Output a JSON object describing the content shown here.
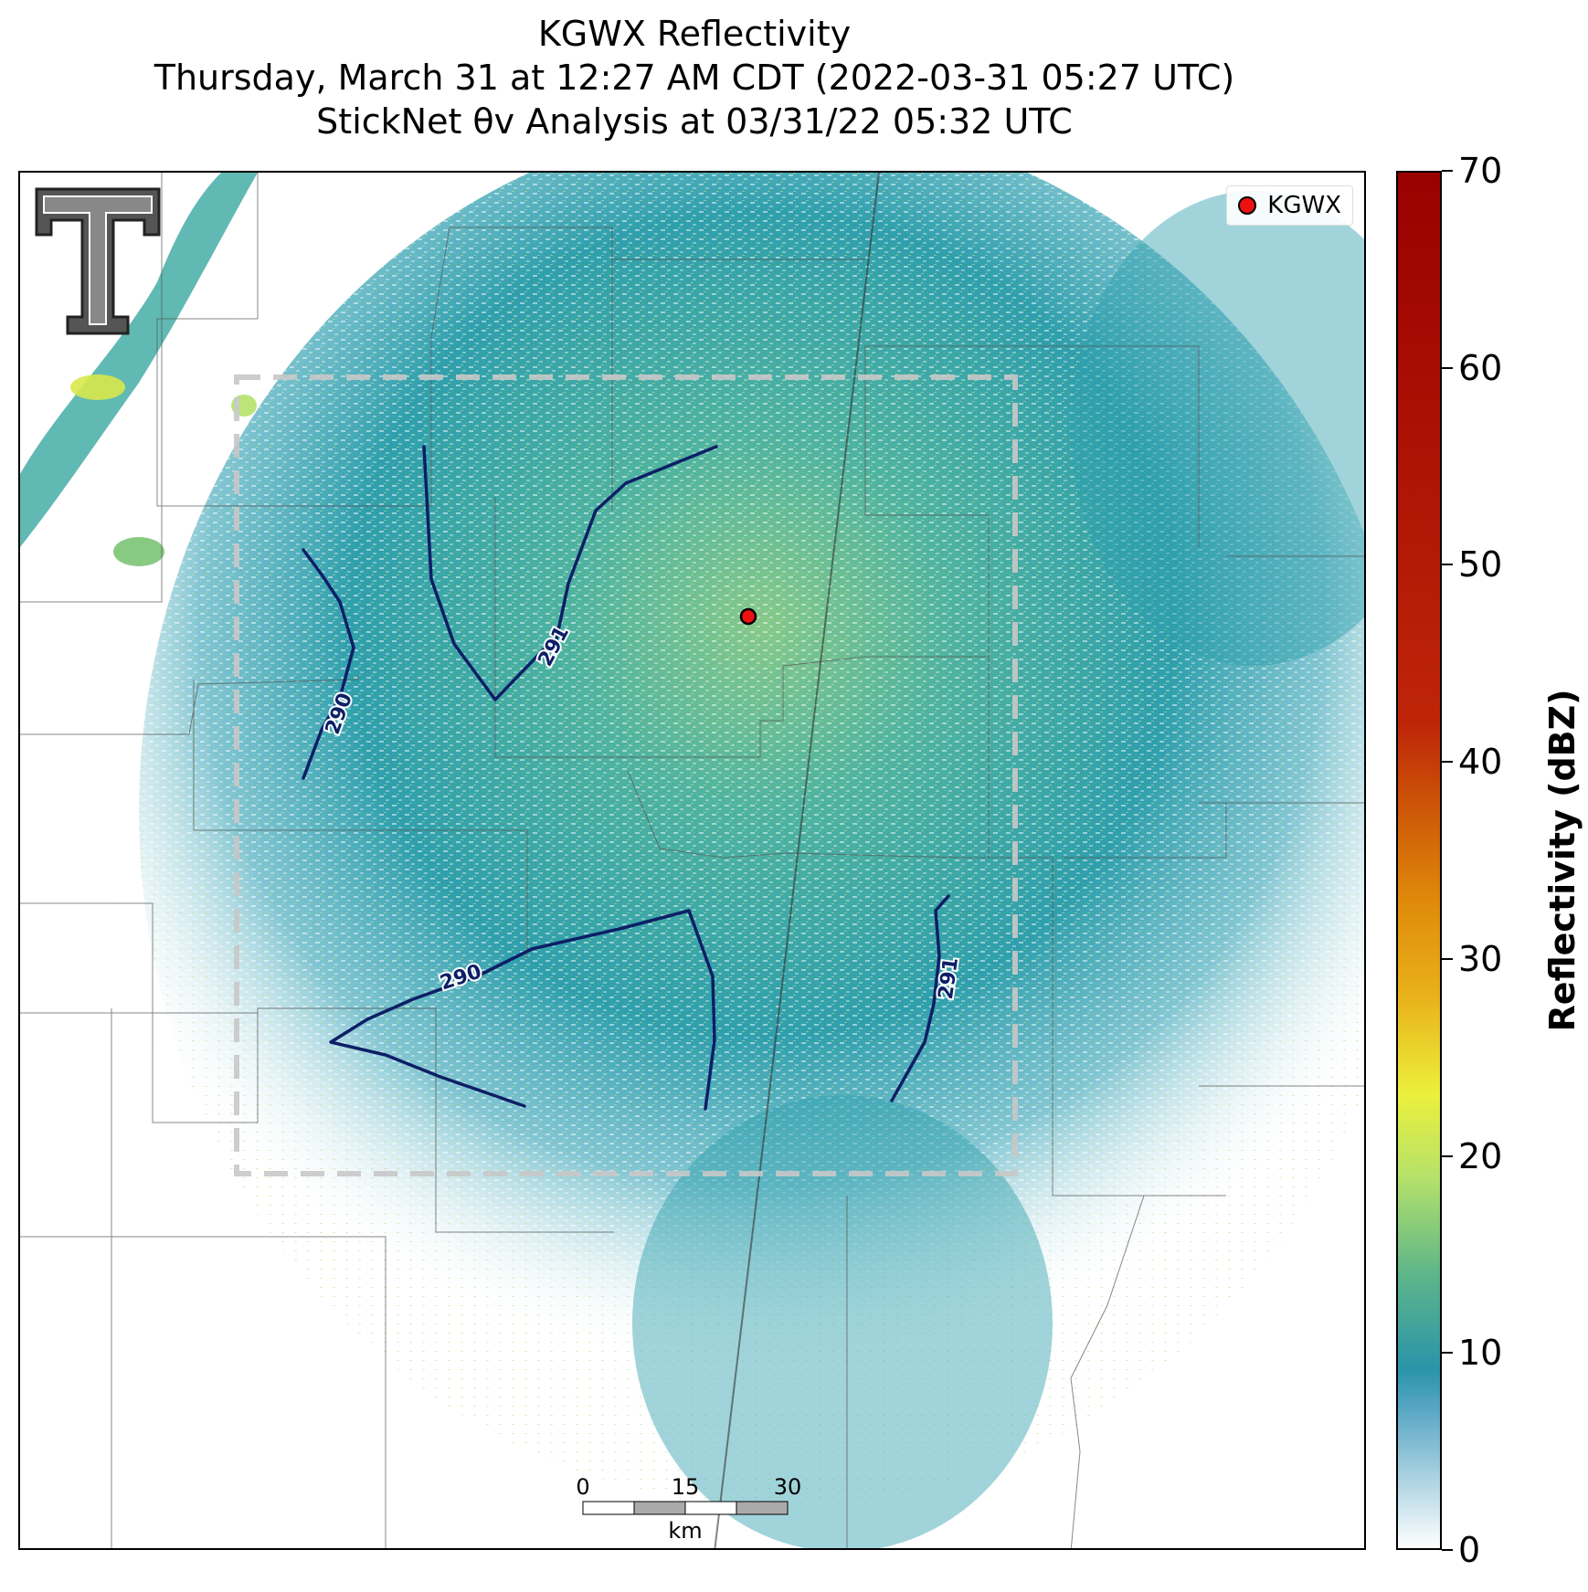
{
  "title": {
    "line1": "KGWX Reflectivity",
    "line2": "Thursday, March 31 at 12:27 AM CDT (2022-03-31 05:27 UTC)",
    "line3": "StickNet θv Analysis at 03/31/22 05:32 UTC"
  },
  "legend": {
    "label": "KGWX",
    "marker_color": "#ee1111"
  },
  "colorbar": {
    "label": "Reflectivity (dBZ)",
    "ticks": [
      "0",
      "10",
      "20",
      "30",
      "40",
      "50",
      "60",
      "70"
    ],
    "range": [
      0,
      70
    ]
  },
  "scale_bar": {
    "ticks": [
      "0",
      "15",
      "30"
    ],
    "unit": "km"
  },
  "contours": [
    {
      "value": "290",
      "color": "#0d1f66"
    },
    {
      "value": "291",
      "color": "#0d1f66"
    },
    {
      "value": "290",
      "color": "#0d1f66"
    },
    {
      "value": "291",
      "color": "#0d1f66"
    }
  ],
  "colors": {
    "echo_base": "#2e9aa8",
    "echo_high": "#9fd67a",
    "contour": "#0d1f66",
    "domain_box": "#c8c8c8"
  },
  "logo": {
    "icon": "texas-tech-double-t-logo"
  }
}
